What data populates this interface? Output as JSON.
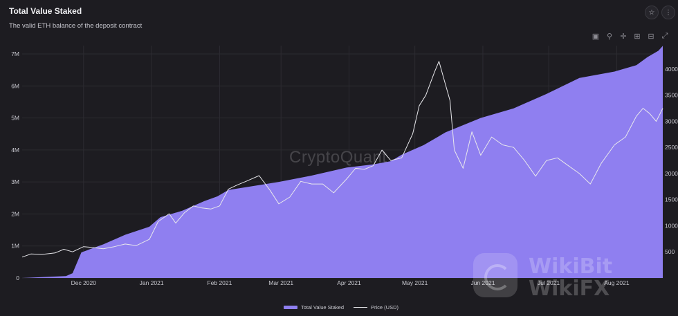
{
  "header": {
    "title": "Total Value Staked",
    "subtitle": "The valid ETH balance of the deposit contract",
    "star_icon": "star-icon",
    "more_icon": "more-vertical-icon"
  },
  "modebar": {
    "items": [
      "camera-icon",
      "zoom-icon",
      "pan-icon",
      "zoom-in-icon",
      "zoom-out-icon",
      "autoscale-icon"
    ]
  },
  "watermark": "CryptoQuant",
  "overlay_brand": {
    "line1": "WikiBit",
    "line2": "WikiFX"
  },
  "colors": {
    "background": "#1d1c21",
    "area_fill": "#8f7ff0",
    "price_line": "#e8e8ec",
    "grid": "#2c2b31",
    "tick_text": "#c9c9d0"
  },
  "chart_data": {
    "type": "area",
    "x_tick_labels": [
      "Dec 2020",
      "Jan 2021",
      "Feb 2021",
      "Mar 2021",
      "Apr 2021",
      "May 2021",
      "Jun 2021",
      "Jul 2021",
      "Aug 2021"
    ],
    "y_left_ticks": [
      "0",
      "1M",
      "2M",
      "3M",
      "4M",
      "5M",
      "6M",
      "7M"
    ],
    "y_right_ticks": [
      "500",
      "1000",
      "1500",
      "2000",
      "2500",
      "3000",
      "3500",
      "4000"
    ],
    "ylim_left": [
      0,
      7000000
    ],
    "ylim_right": [
      0,
      4450
    ],
    "xlim": [
      "2020-11-03",
      "2021-08-22"
    ],
    "grid": true,
    "legend_position": "bottom-center",
    "series": [
      {
        "name": "Total Value Staked",
        "axis": "left",
        "style": "area",
        "points": [
          [
            "2020-11-03",
            0
          ],
          [
            "2020-11-23",
            60000
          ],
          [
            "2020-11-26",
            150000
          ],
          [
            "2020-11-30",
            800000
          ],
          [
            "2020-12-10",
            1050000
          ],
          [
            "2020-12-20",
            1350000
          ],
          [
            "2020-12-31",
            1600000
          ],
          [
            "2021-01-05",
            1900000
          ],
          [
            "2021-01-15",
            2100000
          ],
          [
            "2021-01-25",
            2400000
          ],
          [
            "2021-01-31",
            2550000
          ],
          [
            "2021-02-05",
            2750000
          ],
          [
            "2021-02-28",
            3000000
          ],
          [
            "2021-03-15",
            3200000
          ],
          [
            "2021-03-31",
            3450000
          ],
          [
            "2021-04-12",
            3550000
          ],
          [
            "2021-04-20",
            3650000
          ],
          [
            "2021-04-25",
            3850000
          ],
          [
            "2021-05-05",
            4150000
          ],
          [
            "2021-05-15",
            4550000
          ],
          [
            "2021-05-31",
            5000000
          ],
          [
            "2021-06-15",
            5300000
          ],
          [
            "2021-06-30",
            5750000
          ],
          [
            "2021-07-15",
            6250000
          ],
          [
            "2021-07-31",
            6450000
          ],
          [
            "2021-08-10",
            6650000
          ],
          [
            "2021-08-15",
            6900000
          ],
          [
            "2021-08-20",
            7100000
          ],
          [
            "2021-08-22",
            7250000
          ]
        ]
      },
      {
        "name": "Price (USD)",
        "axis": "right",
        "style": "line",
        "points": [
          [
            "2020-11-03",
            400
          ],
          [
            "2020-11-07",
            460
          ],
          [
            "2020-11-12",
            450
          ],
          [
            "2020-11-18",
            480
          ],
          [
            "2020-11-22",
            550
          ],
          [
            "2020-11-26",
            500
          ],
          [
            "2020-12-01",
            600
          ],
          [
            "2020-12-06",
            580
          ],
          [
            "2020-12-10",
            560
          ],
          [
            "2020-12-15",
            600
          ],
          [
            "2020-12-20",
            650
          ],
          [
            "2020-12-25",
            620
          ],
          [
            "2020-12-31",
            740
          ],
          [
            "2021-01-04",
            1080
          ],
          [
            "2021-01-09",
            1230
          ],
          [
            "2021-01-12",
            1050
          ],
          [
            "2021-01-16",
            1250
          ],
          [
            "2021-01-20",
            1380
          ],
          [
            "2021-01-24",
            1340
          ],
          [
            "2021-01-28",
            1320
          ],
          [
            "2021-02-01",
            1380
          ],
          [
            "2021-02-05",
            1700
          ],
          [
            "2021-02-09",
            1780
          ],
          [
            "2021-02-13",
            1850
          ],
          [
            "2021-02-19",
            1960
          ],
          [
            "2021-02-24",
            1680
          ],
          [
            "2021-02-28",
            1420
          ],
          [
            "2021-03-05",
            1550
          ],
          [
            "2021-03-10",
            1850
          ],
          [
            "2021-03-15",
            1800
          ],
          [
            "2021-03-20",
            1800
          ],
          [
            "2021-03-25",
            1630
          ],
          [
            "2021-03-31",
            1900
          ],
          [
            "2021-04-04",
            2100
          ],
          [
            "2021-04-08",
            2080
          ],
          [
            "2021-04-12",
            2150
          ],
          [
            "2021-04-16",
            2450
          ],
          [
            "2021-04-20",
            2250
          ],
          [
            "2021-04-25",
            2300
          ],
          [
            "2021-04-30",
            2760
          ],
          [
            "2021-05-03",
            3300
          ],
          [
            "2021-05-06",
            3500
          ],
          [
            "2021-05-10",
            3950
          ],
          [
            "2021-05-12",
            4150
          ],
          [
            "2021-05-15",
            3700
          ],
          [
            "2021-05-17",
            3400
          ],
          [
            "2021-05-19",
            2450
          ],
          [
            "2021-05-23",
            2100
          ],
          [
            "2021-05-27",
            2800
          ],
          [
            "2021-05-31",
            2350
          ],
          [
            "2021-06-05",
            2700
          ],
          [
            "2021-06-10",
            2550
          ],
          [
            "2021-06-15",
            2500
          ],
          [
            "2021-06-20",
            2250
          ],
          [
            "2021-06-25",
            1950
          ],
          [
            "2021-06-30",
            2250
          ],
          [
            "2021-07-05",
            2300
          ],
          [
            "2021-07-10",
            2150
          ],
          [
            "2021-07-15",
            2000
          ],
          [
            "2021-07-20",
            1800
          ],
          [
            "2021-07-25",
            2200
          ],
          [
            "2021-07-31",
            2550
          ],
          [
            "2021-08-05",
            2700
          ],
          [
            "2021-08-10",
            3100
          ],
          [
            "2021-08-13",
            3250
          ],
          [
            "2021-08-16",
            3150
          ],
          [
            "2021-08-19",
            3000
          ],
          [
            "2021-08-22",
            3250
          ]
        ]
      }
    ]
  }
}
